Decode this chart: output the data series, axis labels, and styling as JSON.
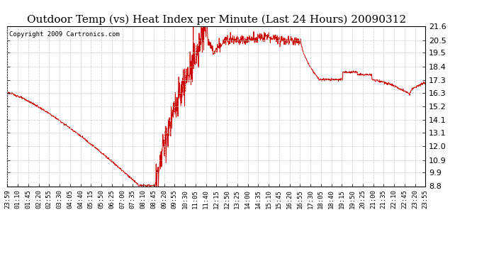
{
  "title": "Outdoor Temp (vs) Heat Index per Minute (Last 24 Hours) 20090312",
  "copyright": "Copyright 2009 Cartronics.com",
  "line_color": "#cc0000",
  "background_color": "#ffffff",
  "grid_color": "#c8c8c8",
  "ylim": [
    8.8,
    21.6
  ],
  "yticks": [
    8.8,
    9.9,
    10.9,
    12.0,
    13.1,
    14.1,
    15.2,
    16.3,
    17.3,
    18.4,
    19.5,
    20.5,
    21.6
  ],
  "xtick_labels": [
    "23:59",
    "01:10",
    "01:45",
    "02:20",
    "02:55",
    "03:30",
    "04:05",
    "04:40",
    "05:15",
    "05:50",
    "06:25",
    "07:00",
    "07:35",
    "08:10",
    "08:45",
    "09:20",
    "09:55",
    "10:30",
    "11:05",
    "11:40",
    "12:15",
    "12:50",
    "13:25",
    "14:00",
    "14:35",
    "15:10",
    "15:45",
    "16:20",
    "16:55",
    "17:30",
    "18:05",
    "18:40",
    "19:15",
    "19:50",
    "20:25",
    "21:00",
    "21:35",
    "22:10",
    "22:45",
    "23:20",
    "23:55"
  ],
  "title_fontsize": 11,
  "copyright_fontsize": 6.5,
  "tick_fontsize": 6.5,
  "ytick_fontsize": 8
}
